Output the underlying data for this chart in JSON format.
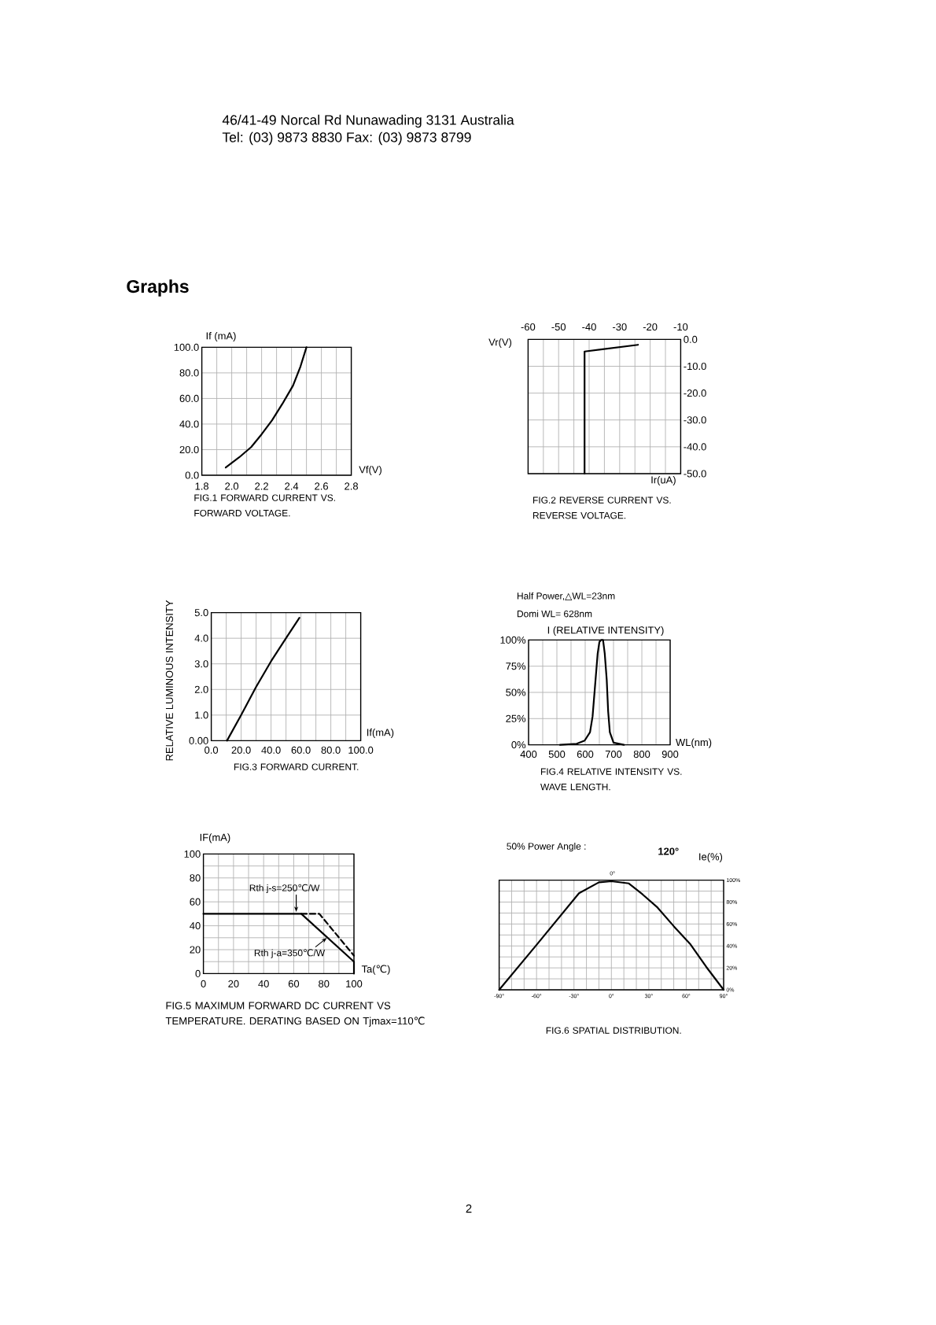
{
  "chart_data": [
    {
      "type": "line",
      "title": "FIG.1 FORWARD CURRENT VS. FORWARD VOLTAGE.",
      "xlabel": "Vf(V)",
      "ylabel": "If (mA)",
      "x": [
        1.96,
        2.05,
        2.13,
        2.2,
        2.27,
        2.34,
        2.41,
        2.46,
        2.5
      ],
      "values": [
        6,
        14,
        22,
        32,
        43,
        56,
        70,
        85,
        100
      ],
      "color": "#000000",
      "xlim": [
        1.8,
        2.8
      ],
      "ylim": [
        0,
        100
      ],
      "xticks": [
        1.8,
        {
          "value": 2,
          "label": "2.0"
        },
        2.2,
        2.4,
        2.6,
        2.8
      ],
      "yticks": [
        {
          "value": 0,
          "label": "0.0"
        },
        {
          "value": 20,
          "label": "20.0"
        },
        {
          "value": 40,
          "label": "40.0"
        },
        {
          "value": 60,
          "label": "60.0"
        },
        {
          "value": 80,
          "label": "80.0"
        },
        {
          "value": 100,
          "label": "100.0"
        }
      ],
      "grid": true,
      "annotations": [
        "46/41-49 Norcal Rd Nunawading 3131 Australia",
        "Tel: (03) 9873 8830 Fax: (03) 9873 8799",
        "Graphs",
        "2"
      ]
    },
    {
      "type": "line",
      "title": "FIG.2 REVERSE CURRENT VS. REVERSE VOLTAGE.",
      "xlabel": "Ir(uA)",
      "ylabel": "Vr(V)",
      "x": [
        -41.5,
        -41.5,
        -24
      ],
      "values": [
        -50,
        -4.5,
        -2
      ],
      "color": "#000000",
      "xlim": [
        -60,
        -10
      ],
      "ylim": [
        -50,
        0
      ],
      "xticks": [
        -60,
        -50,
        -40,
        -30,
        -20,
        -10
      ],
      "yticks": [
        {
          "value": 0,
          "label": "0.0"
        },
        {
          "value": -10,
          "label": "-10.0"
        },
        {
          "value": -20,
          "label": "-20.0"
        },
        {
          "value": -30,
          "label": "-30.0"
        },
        {
          "value": -40,
          "label": "-40.0"
        },
        {
          "value": -50,
          "label": "-50.0"
        }
      ],
      "grid": true
    },
    {
      "type": "line",
      "title": "FIG.3 FORWARD CURRENT.",
      "xlabel": "If(mA)",
      "ylabel": "RELATIVE LUMINOUS INTENSITY",
      "x": [
        10.5,
        20,
        30,
        40,
        50,
        59
      ],
      "values": [
        0,
        1.0,
        2.1,
        3.1,
        4.0,
        4.8
      ],
      "color": "#000000",
      "xlim": [
        0,
        100
      ],
      "ylim": [
        0,
        5
      ],
      "xticks": [
        {
          "value": 0,
          "label": "0.0"
        },
        {
          "value": 20,
          "label": "20.0"
        },
        {
          "value": 40,
          "label": "40.0"
        },
        {
          "value": 60,
          "label": "60.0"
        },
        {
          "value": 80,
          "label": "80.0"
        },
        {
          "value": 100,
          "label": "100.0"
        }
      ],
      "yticks": [
        {
          "value": 0,
          "label": "0.00"
        },
        {
          "value": 1,
          "label": "1.0"
        },
        {
          "value": 2,
          "label": "2.0"
        },
        {
          "value": 3,
          "label": "3.0"
        },
        {
          "value": 4,
          "label": "4.0"
        },
        {
          "value": 5,
          "label": "5.0"
        }
      ],
      "grid": true
    },
    {
      "type": "line",
      "title": "FIG.4 RELATIVE  INTENSITY VS. WAVE LENGTH.",
      "xlabel": "WL(nm)",
      "ylabel": "I (RELATIVE INTENSITY)",
      "x": [
        511,
        570,
        598,
        617,
        626,
        635,
        644,
        650,
        656,
        663,
        669,
        676,
        681,
        687,
        700,
        737
      ],
      "values": [
        0,
        1,
        4,
        12,
        27,
        57,
        87,
        98,
        100,
        100,
        87,
        62,
        32,
        12,
        2,
        0
      ],
      "color": "#000000",
      "xlim": [
        400,
        900
      ],
      "ylim": [
        0,
        100
      ],
      "xticks": [
        400,
        500,
        600,
        700,
        800,
        900
      ],
      "yticks": [
        {
          "value": 0,
          "label": "0%"
        },
        {
          "value": 25,
          "label": "25%"
        },
        {
          "value": 50,
          "label": "50%"
        },
        {
          "value": 75,
          "label": "75%"
        },
        {
          "value": 100,
          "label": "100%"
        }
      ],
      "grid": true,
      "annotations": [
        "Half Power,△WL=23nm",
        "Domi  WL= 628nm"
      ]
    },
    {
      "type": "line",
      "title": "FIG.5 MAXIMUM FORWARD DC CURRENT VS TEMPERATURE. DERATING BASED ON Tjmax=110℃",
      "xlabel": "Ta(℃)",
      "ylabel": "IF(mA)",
      "series": [
        {
          "name": "Rth j-s=250℃/W",
          "color": "#000000",
          "line_style": "dashed",
          "x": [
            65,
            77,
            100
          ],
          "values": [
            50,
            50,
            15
          ]
        },
        {
          "name": "Rth j-a=350℃/W",
          "color": "#000000",
          "line_style": "solid",
          "x": [
            0,
            65,
            100,
            100
          ],
          "values": [
            50,
            50,
            10,
            0
          ]
        }
      ],
      "xlim": [
        0,
        100
      ],
      "ylim": [
        0,
        100
      ],
      "xticks": [
        0,
        20,
        40,
        60,
        80,
        100
      ],
      "yticks": [
        0,
        20,
        40,
        60,
        80,
        100
      ],
      "grid": true
    },
    {
      "type": "line",
      "title": "FIG.6 SPATIAL DISTRIBUTION.",
      "ylabel": "Ie(%)",
      "x": [
        -90,
        -60,
        -26,
        -10,
        0,
        14,
        25,
        37,
        50,
        63,
        76,
        90
      ],
      "values": [
        0,
        41,
        88,
        98,
        99,
        97,
        87,
        75,
        58,
        42,
        21,
        0
      ],
      "color": "#000000",
      "xlim": [
        -90,
        90
      ],
      "ylim": [
        0,
        100
      ],
      "xticks": [
        {
          "value": -90,
          "label": "-90°"
        },
        {
          "value": -60,
          "label": "-60°"
        },
        {
          "value": -30,
          "label": "-30°"
        },
        {
          "value": 0,
          "label": "0°"
        },
        {
          "value": 30,
          "label": "30°"
        },
        {
          "value": 60,
          "label": "60°"
        },
        {
          "value": 90,
          "label": "90°"
        }
      ],
      "yticks": [
        {
          "value": 0,
          "label": "0%"
        },
        {
          "value": 20,
          "label": "20%"
        },
        {
          "value": 40,
          "label": "40%"
        },
        {
          "value": 60,
          "label": "60%"
        },
        {
          "value": 80,
          "label": "80%"
        },
        {
          "value": 100,
          "label": "100%"
        }
      ],
      "grid": true,
      "annotations": [
        "50% Power Angle :",
        "120°",
        "0°"
      ]
    }
  ]
}
